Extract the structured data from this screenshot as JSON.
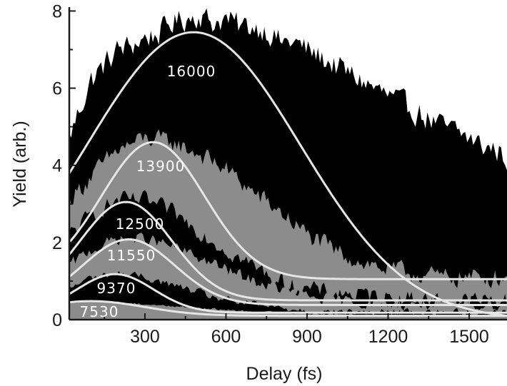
{
  "chart_data": {
    "type": "area",
    "xlabel": "Delay (fs)",
    "ylabel": "Yield (arb.)",
    "xlim": [
      20,
      1640
    ],
    "ylim": [
      0,
      8.1
    ],
    "xticks": [
      300,
      600,
      900,
      1200,
      1500
    ],
    "yticks": [
      0,
      2,
      4,
      6,
      8
    ],
    "grid": false,
    "legend": "none",
    "fill_colors": [
      "#000000",
      "#8c8c8c",
      "#000000",
      "#8c8c8c",
      "#000000",
      "#8c8c8c"
    ],
    "fit_color": "#e6e6e6",
    "series": [
      {
        "label": "16000",
        "fit_params": {
          "A": 7.45,
          "peak": 480,
          "sigma": 560,
          "offset": 0.0
        },
        "noise_amplitude": 0.45,
        "x": [
          20,
          50,
          100,
          150,
          200,
          250,
          300,
          350,
          400,
          450,
          500,
          550,
          600,
          650,
          700,
          750,
          800,
          850,
          900,
          950,
          1000,
          1050,
          1100,
          1150,
          1200,
          1250,
          1300,
          1350,
          1400,
          1450,
          1500,
          1550,
          1600,
          1640
        ],
        "y": [
          4.7,
          5.3,
          6.2,
          6.6,
          7.0,
          7.1,
          7.3,
          7.4,
          7.7,
          7.8,
          7.9,
          7.7,
          7.8,
          7.6,
          7.6,
          7.5,
          7.2,
          7.2,
          7.0,
          6.8,
          6.6,
          6.4,
          6.2,
          6.0,
          5.8,
          5.6,
          5.4,
          5.2,
          5.0,
          4.9,
          4.7,
          4.5,
          4.4,
          4.2
        ]
      },
      {
        "label": "13900",
        "fit_params": {
          "A": 3.55,
          "peak": 330,
          "sigma": 270,
          "offset": 1.05
        },
        "noise_amplitude": 0.35,
        "x": [
          20,
          100,
          200,
          300,
          400,
          500,
          600,
          700,
          800,
          900,
          1000,
          1100,
          1200,
          1300,
          1400,
          1500,
          1600,
          1640
        ],
        "y": [
          3.1,
          3.7,
          4.4,
          4.7,
          4.6,
          4.3,
          3.9,
          3.3,
          2.8,
          2.2,
          1.8,
          1.5,
          1.3,
          1.2,
          1.1,
          1.1,
          1.1,
          1.1
        ]
      },
      {
        "label": "12500",
        "fit_params": {
          "A": 2.55,
          "peak": 230,
          "sigma": 240,
          "offset": 0.5
        },
        "noise_amplitude": 0.3,
        "x": [
          20,
          100,
          200,
          300,
          400,
          500,
          600,
          700,
          800,
          900,
          1000,
          1200,
          1400,
          1640
        ],
        "y": [
          2.2,
          2.7,
          3.1,
          3.1,
          2.8,
          2.3,
          1.8,
          1.4,
          1.0,
          0.8,
          0.7,
          0.6,
          0.5,
          0.5
        ]
      },
      {
        "label": "11550",
        "fit_params": {
          "A": 1.7,
          "peak": 240,
          "sigma": 240,
          "offset": 0.38
        },
        "noise_amplitude": 0.22,
        "x": [
          20,
          100,
          200,
          300,
          400,
          500,
          600,
          700,
          800,
          900,
          1000,
          1200,
          1400,
          1640
        ],
        "y": [
          1.4,
          1.8,
          2.1,
          2.1,
          1.9,
          1.6,
          1.3,
          1.0,
          0.8,
          0.6,
          0.5,
          0.4,
          0.4,
          0.4
        ]
      },
      {
        "label": "9370",
        "fit_params": {
          "A": 1.0,
          "peak": 190,
          "sigma": 200,
          "offset": 0.18
        },
        "noise_amplitude": 0.14,
        "x": [
          20,
          100,
          200,
          300,
          400,
          500,
          600,
          700,
          800,
          1000,
          1200,
          1400,
          1640
        ],
        "y": [
          0.8,
          1.1,
          1.2,
          1.1,
          0.9,
          0.7,
          0.5,
          0.4,
          0.3,
          0.2,
          0.2,
          0.2,
          0.2
        ]
      },
      {
        "label": "7530",
        "fit_params": {
          "A": 0.38,
          "peak": 100,
          "sigma": 280,
          "offset": 0.1
        },
        "noise_amplitude": 0.04,
        "x": [
          20,
          100,
          200,
          300,
          400,
          500,
          600,
          800,
          1000,
          1200,
          1400,
          1640
        ],
        "y": [
          0.45,
          0.48,
          0.45,
          0.4,
          0.35,
          0.3,
          0.25,
          0.18,
          0.14,
          0.12,
          0.11,
          0.1
        ]
      }
    ]
  }
}
